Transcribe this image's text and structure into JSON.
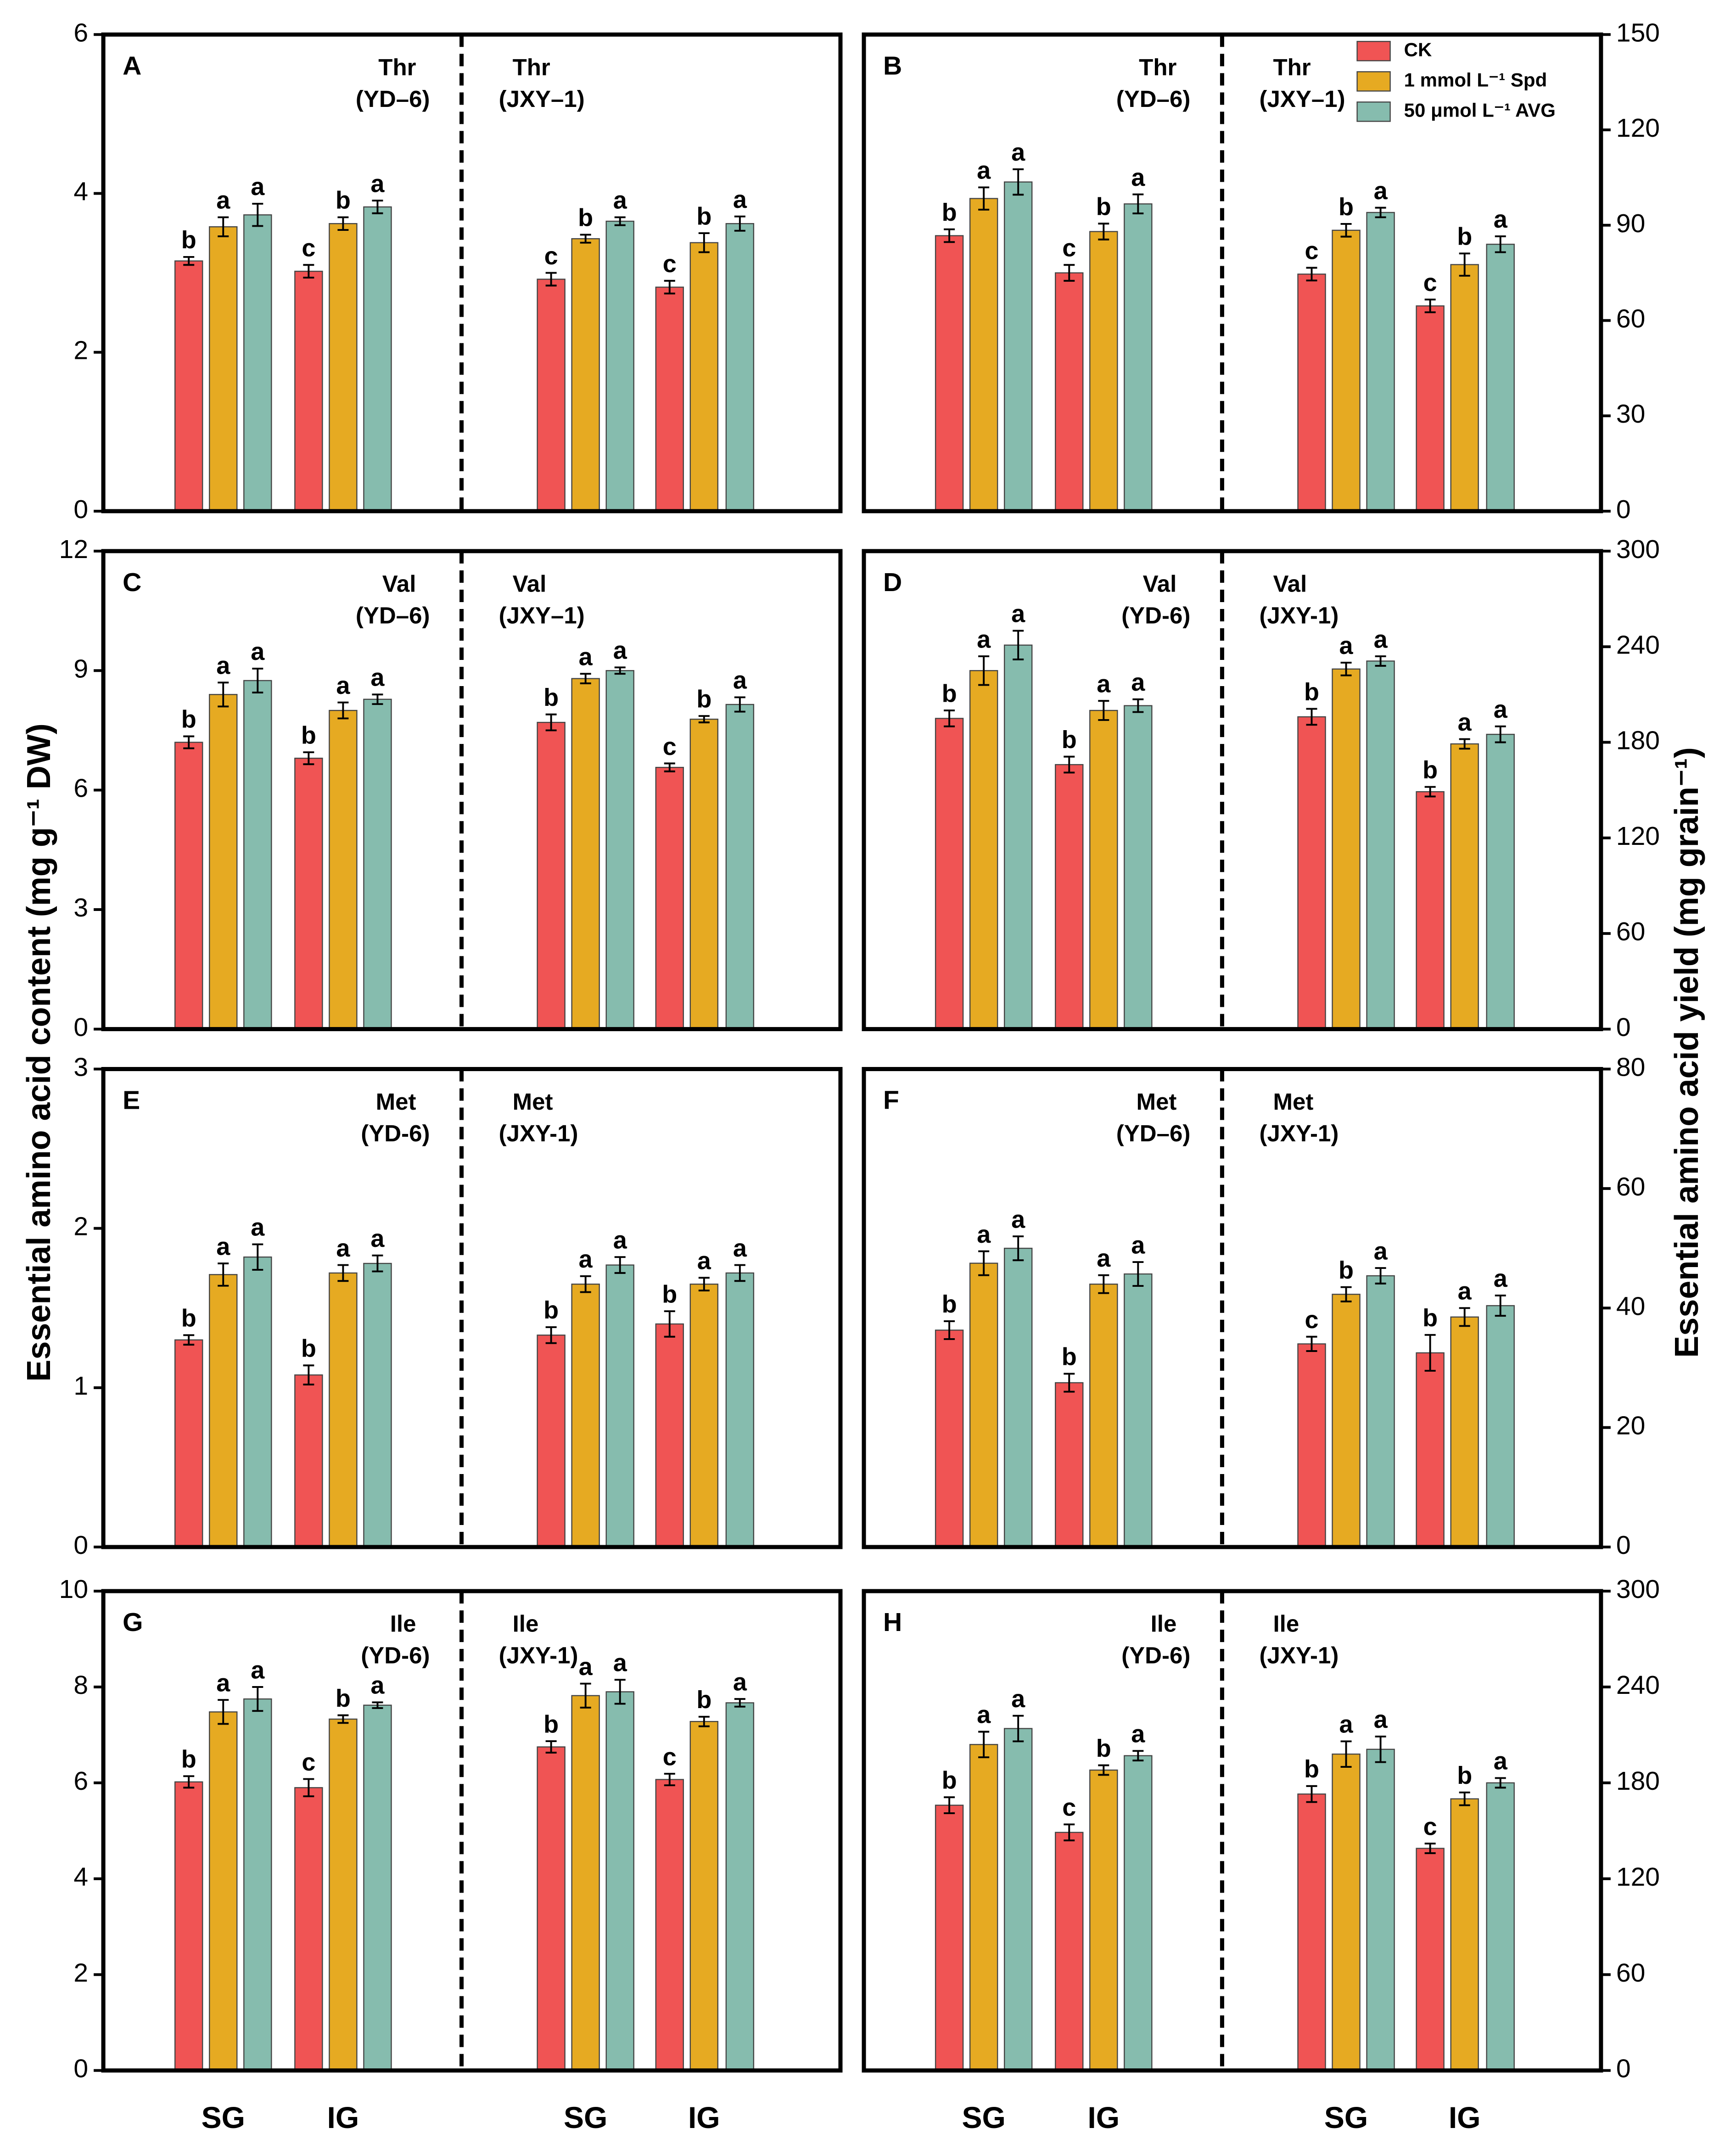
{
  "y_axis_titles": [
    "Essential amino acid content (mg g⁻¹ DW)",
    "Essential amino acid yield (mg grain⁻¹)"
  ],
  "chart_data": [
    {
      "type": "bar",
      "label": "A",
      "annotations": [
        "Thr",
        "(YD–6)",
        "Thr",
        "(JXY–1)"
      ],
      "ylim": [
        0,
        6
      ],
      "yticks": [
        0,
        2,
        4,
        6
      ],
      "series": [
        {
          "color": "#f05454",
          "values": [
            3.15,
            3.02,
            2.92,
            2.82
          ],
          "errors": [
            0.05,
            0.08,
            0.08,
            0.08
          ],
          "letters": [
            "b",
            "c",
            "c",
            "c"
          ]
        },
        {
          "color": "#e6aa22",
          "values": [
            3.58,
            3.62,
            3.43,
            3.38
          ],
          "errors": [
            0.12,
            0.08,
            0.05,
            0.12
          ],
          "letters": [
            "a",
            "b",
            "b",
            "b"
          ]
        },
        {
          "color": "#86bcae",
          "values": [
            3.73,
            3.83,
            3.65,
            3.62
          ],
          "errors": [
            0.14,
            0.08,
            0.05,
            0.09
          ],
          "letters": [
            "a",
            "a",
            "a",
            "a"
          ]
        }
      ]
    },
    {
      "type": "bar",
      "label": "B",
      "annotations": [
        "Thr",
        "(YD–6)",
        "Thr",
        "(JXY–1)"
      ],
      "ylim": [
        0,
        150
      ],
      "yticks": [
        0,
        30,
        60,
        90,
        120,
        150
      ],
      "series": [
        {
          "name": "CK",
          "color": "#f05454",
          "values": [
            86.7,
            75,
            74.6,
            64.6
          ],
          "errors": [
            2,
            2.5,
            2,
            2
          ],
          "letters": [
            "b",
            "c",
            "c",
            "c"
          ]
        },
        {
          "name": "1 mmol L⁻¹ Spd",
          "color": "#e6aa22",
          "values": [
            98.4,
            88,
            88.4,
            77.6
          ],
          "errors": [
            3.5,
            2.5,
            2,
            3.5
          ],
          "letters": [
            "a",
            "b",
            "b",
            "b"
          ]
        },
        {
          "name": "50 μmol L⁻¹ AVG",
          "color": "#86bcae",
          "values": [
            103.6,
            96.7,
            94,
            84
          ],
          "errors": [
            4,
            3,
            1.5,
            2.5
          ],
          "letters": [
            "a",
            "a",
            "a",
            "a"
          ]
        }
      ]
    },
    {
      "type": "bar",
      "label": "C",
      "annotations": [
        "Val",
        "(YD–6)",
        "Val",
        "(JXY–1)"
      ],
      "ylim": [
        0,
        12
      ],
      "yticks": [
        0,
        3,
        6,
        9,
        12
      ],
      "series": [
        {
          "color": "#f05454",
          "values": [
            7.2,
            6.8,
            7.7,
            6.57
          ],
          "errors": [
            0.15,
            0.15,
            0.2,
            0.1
          ],
          "letters": [
            "b",
            "b",
            "b",
            "c"
          ]
        },
        {
          "color": "#e6aa22",
          "values": [
            8.4,
            8.0,
            8.8,
            7.78
          ],
          "errors": [
            0.3,
            0.2,
            0.12,
            0.08
          ],
          "letters": [
            "a",
            "a",
            "a",
            "b"
          ]
        },
        {
          "color": "#86bcae",
          "values": [
            8.75,
            8.28,
            9.0,
            8.15
          ],
          "errors": [
            0.3,
            0.12,
            0.08,
            0.18
          ],
          "letters": [
            "a",
            "a",
            "a",
            "a"
          ]
        }
      ]
    },
    {
      "type": "bar",
      "label": "D",
      "annotations": [
        "Val",
        "(YD-6)",
        "Val",
        "(JXY-1)"
      ],
      "ylim": [
        0,
        300
      ],
      "yticks": [
        0,
        60,
        120,
        180,
        240,
        300
      ],
      "series": [
        {
          "color": "#f05454",
          "values": [
            195,
            166,
            196,
            149
          ],
          "errors": [
            5,
            5,
            5,
            3
          ],
          "letters": [
            "b",
            "b",
            "b",
            "b"
          ]
        },
        {
          "color": "#e6aa22",
          "values": [
            225,
            200,
            226,
            179
          ],
          "errors": [
            9,
            6,
            4,
            3
          ],
          "letters": [
            "a",
            "a",
            "a",
            "a"
          ]
        },
        {
          "color": "#86bcae",
          "values": [
            241,
            203,
            231,
            185
          ],
          "errors": [
            9,
            4,
            3,
            5
          ],
          "letters": [
            "a",
            "a",
            "a",
            "a"
          ]
        }
      ]
    },
    {
      "type": "bar",
      "label": "E",
      "annotations": [
        "Met",
        "(YD-6)",
        "Met",
        "(JXY-1)"
      ],
      "ylim": [
        0,
        3
      ],
      "yticks": [
        0,
        1,
        2,
        3
      ],
      "series": [
        {
          "color": "#f05454",
          "values": [
            1.3,
            1.08,
            1.33,
            1.4
          ],
          "errors": [
            0.03,
            0.06,
            0.05,
            0.08
          ],
          "letters": [
            "b",
            "b",
            "b",
            "b"
          ]
        },
        {
          "color": "#e6aa22",
          "values": [
            1.71,
            1.72,
            1.65,
            1.65
          ],
          "errors": [
            0.07,
            0.05,
            0.05,
            0.04
          ],
          "letters": [
            "a",
            "a",
            "a",
            "a"
          ]
        },
        {
          "color": "#86bcae",
          "values": [
            1.82,
            1.78,
            1.77,
            1.72
          ],
          "errors": [
            0.08,
            0.05,
            0.05,
            0.05
          ],
          "letters": [
            "a",
            "a",
            "a",
            "a"
          ]
        }
      ]
    },
    {
      "type": "bar",
      "label": "F",
      "annotations": [
        "Met",
        "(YD–6)",
        "Met",
        "(JXY-1)"
      ],
      "ylim": [
        0,
        80
      ],
      "yticks": [
        0,
        20,
        40,
        60,
        80
      ],
      "series": [
        {
          "color": "#f05454",
          "values": [
            36.3,
            27.5,
            34.0,
            32.5
          ],
          "errors": [
            1.5,
            1.5,
            1.2,
            3
          ],
          "letters": [
            "b",
            "b",
            "c",
            "b"
          ]
        },
        {
          "color": "#e6aa22",
          "values": [
            47.5,
            44.0,
            42.3,
            38.5
          ],
          "errors": [
            2,
            1.5,
            1.2,
            1.5
          ],
          "letters": [
            "a",
            "a",
            "b",
            "a"
          ]
        },
        {
          "color": "#86bcae",
          "values": [
            50.0,
            45.7,
            45.4,
            40.4
          ],
          "errors": [
            2,
            2,
            1.3,
            1.7
          ],
          "letters": [
            "a",
            "a",
            "a",
            "a"
          ]
        }
      ]
    },
    {
      "type": "bar",
      "label": "G",
      "annotations": [
        "Ile",
        "(YD-6)",
        "Ile",
        "(JXY-1)"
      ],
      "ylim": [
        0,
        10
      ],
      "yticks": [
        0,
        2,
        4,
        6,
        8,
        10
      ],
      "categories": [
        "SG",
        "IG",
        "SG",
        "IG"
      ],
      "series": [
        {
          "color": "#f05454",
          "values": [
            6.02,
            5.9,
            6.75,
            6.07
          ],
          "errors": [
            0.12,
            0.18,
            0.12,
            0.12
          ],
          "letters": [
            "b",
            "c",
            "b",
            "c"
          ]
        },
        {
          "color": "#e6aa22",
          "values": [
            7.48,
            7.33,
            7.82,
            7.28
          ],
          "errors": [
            0.25,
            0.08,
            0.25,
            0.1
          ],
          "letters": [
            "a",
            "b",
            "a",
            "b"
          ]
        },
        {
          "color": "#86bcae",
          "values": [
            7.75,
            7.62,
            7.9,
            7.67
          ],
          "errors": [
            0.25,
            0.06,
            0.25,
            0.08
          ],
          "letters": [
            "a",
            "a",
            "a",
            "a"
          ]
        }
      ]
    },
    {
      "type": "bar",
      "label": "H",
      "annotations": [
        "Ile",
        "(YD-6)",
        "Ile",
        "(JXY-1)"
      ],
      "ylim": [
        0,
        300
      ],
      "yticks": [
        0,
        60,
        120,
        180,
        240,
        300
      ],
      "categories": [
        "SG",
        "IG",
        "SG",
        "IG"
      ],
      "series": [
        {
          "color": "#f05454",
          "values": [
            166,
            149,
            173,
            139
          ],
          "errors": [
            5,
            5,
            5,
            3
          ],
          "letters": [
            "b",
            "c",
            "b",
            "c"
          ]
        },
        {
          "color": "#e6aa22",
          "values": [
            204,
            188,
            198,
            170
          ],
          "errors": [
            8,
            3,
            8,
            4
          ],
          "letters": [
            "a",
            "b",
            "a",
            "b"
          ]
        },
        {
          "color": "#86bcae",
          "values": [
            214,
            197,
            201,
            180
          ],
          "errors": [
            8,
            3,
            8,
            3
          ],
          "letters": [
            "a",
            "a",
            "a",
            "a"
          ]
        }
      ]
    }
  ]
}
